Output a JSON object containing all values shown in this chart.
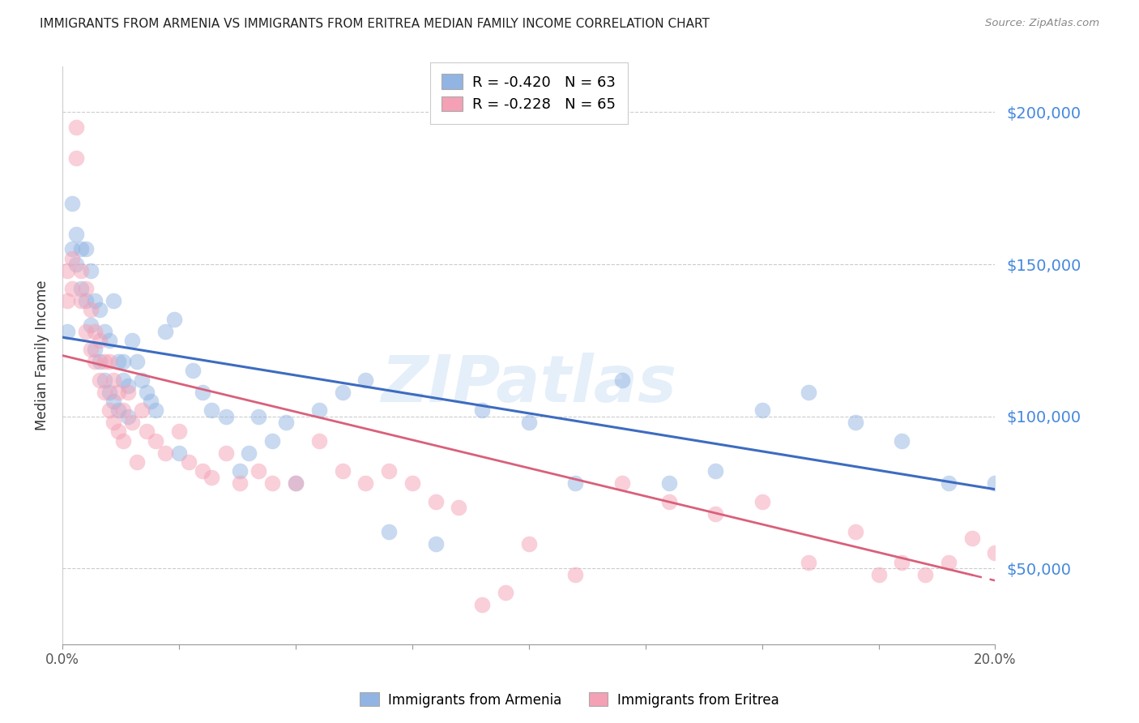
{
  "title": "IMMIGRANTS FROM ARMENIA VS IMMIGRANTS FROM ERITREA MEDIAN FAMILY INCOME CORRELATION CHART",
  "source": "Source: ZipAtlas.com",
  "ylabel": "Median Family Income",
  "xlim": [
    0.0,
    0.2
  ],
  "ylim": [
    25000,
    215000
  ],
  "yticks": [
    50000,
    100000,
    150000,
    200000
  ],
  "ytick_labels": [
    "$50,000",
    "$100,000",
    "$150,000",
    "$200,000"
  ],
  "xtick_labels_show": [
    "0.0%",
    "20.0%"
  ],
  "xtick_positions_show": [
    0.0,
    0.2
  ],
  "xtick_positions_all": [
    0.0,
    0.025,
    0.05,
    0.075,
    0.1,
    0.125,
    0.15,
    0.175,
    0.2
  ],
  "armenia_color": "#92b4e3",
  "eritrea_color": "#f4a0b5",
  "armenia_line_color": "#3d6cc0",
  "eritrea_line_color": "#d9607a",
  "legend_armenia_label": "R = -0.420   N = 63",
  "legend_eritrea_label": "R = -0.228   N = 65",
  "legend_armenia_label_bottom": "Immigrants from Armenia",
  "legend_eritrea_label_bottom": "Immigrants from Eritrea",
  "watermark": "ZIPatlas",
  "armenia_intercept": 126000,
  "armenia_slope": -250000,
  "eritrea_intercept": 120000,
  "eritrea_slope": -370000,
  "armenia_points_x": [
    0.001,
    0.002,
    0.002,
    0.003,
    0.003,
    0.004,
    0.004,
    0.005,
    0.005,
    0.006,
    0.006,
    0.007,
    0.007,
    0.008,
    0.008,
    0.009,
    0.009,
    0.01,
    0.01,
    0.011,
    0.011,
    0.012,
    0.012,
    0.013,
    0.013,
    0.014,
    0.014,
    0.015,
    0.016,
    0.017,
    0.018,
    0.019,
    0.02,
    0.022,
    0.024,
    0.025,
    0.028,
    0.03,
    0.032,
    0.035,
    0.038,
    0.04,
    0.042,
    0.045,
    0.048,
    0.05,
    0.055,
    0.06,
    0.065,
    0.07,
    0.08,
    0.09,
    0.1,
    0.11,
    0.12,
    0.13,
    0.14,
    0.15,
    0.16,
    0.17,
    0.18,
    0.19,
    0.2
  ],
  "armenia_points_y": [
    128000,
    170000,
    155000,
    160000,
    150000,
    155000,
    142000,
    155000,
    138000,
    148000,
    130000,
    138000,
    122000,
    135000,
    118000,
    128000,
    112000,
    125000,
    108000,
    138000,
    105000,
    118000,
    102000,
    112000,
    118000,
    110000,
    100000,
    125000,
    118000,
    112000,
    108000,
    105000,
    102000,
    128000,
    132000,
    88000,
    115000,
    108000,
    102000,
    100000,
    82000,
    88000,
    100000,
    92000,
    98000,
    78000,
    102000,
    108000,
    112000,
    62000,
    58000,
    102000,
    98000,
    78000,
    112000,
    78000,
    82000,
    102000,
    108000,
    98000,
    92000,
    78000,
    78000
  ],
  "eritrea_points_x": [
    0.001,
    0.001,
    0.002,
    0.002,
    0.003,
    0.003,
    0.004,
    0.004,
    0.005,
    0.005,
    0.006,
    0.006,
    0.007,
    0.007,
    0.008,
    0.008,
    0.009,
    0.009,
    0.01,
    0.01,
    0.011,
    0.011,
    0.012,
    0.012,
    0.013,
    0.013,
    0.014,
    0.015,
    0.016,
    0.017,
    0.018,
    0.02,
    0.022,
    0.025,
    0.027,
    0.03,
    0.032,
    0.035,
    0.038,
    0.042,
    0.045,
    0.05,
    0.055,
    0.06,
    0.065,
    0.07,
    0.075,
    0.08,
    0.085,
    0.09,
    0.095,
    0.1,
    0.11,
    0.12,
    0.13,
    0.14,
    0.15,
    0.16,
    0.17,
    0.175,
    0.18,
    0.185,
    0.19,
    0.195,
    0.2
  ],
  "eritrea_points_y": [
    148000,
    138000,
    152000,
    142000,
    185000,
    195000,
    148000,
    138000,
    142000,
    128000,
    135000,
    122000,
    128000,
    118000,
    125000,
    112000,
    118000,
    108000,
    118000,
    102000,
    112000,
    98000,
    108000,
    95000,
    102000,
    92000,
    108000,
    98000,
    85000,
    102000,
    95000,
    92000,
    88000,
    95000,
    85000,
    82000,
    80000,
    88000,
    78000,
    82000,
    78000,
    78000,
    92000,
    82000,
    78000,
    82000,
    78000,
    72000,
    70000,
    38000,
    42000,
    58000,
    48000,
    78000,
    72000,
    68000,
    72000,
    52000,
    62000,
    48000,
    52000,
    48000,
    52000,
    60000,
    55000
  ]
}
